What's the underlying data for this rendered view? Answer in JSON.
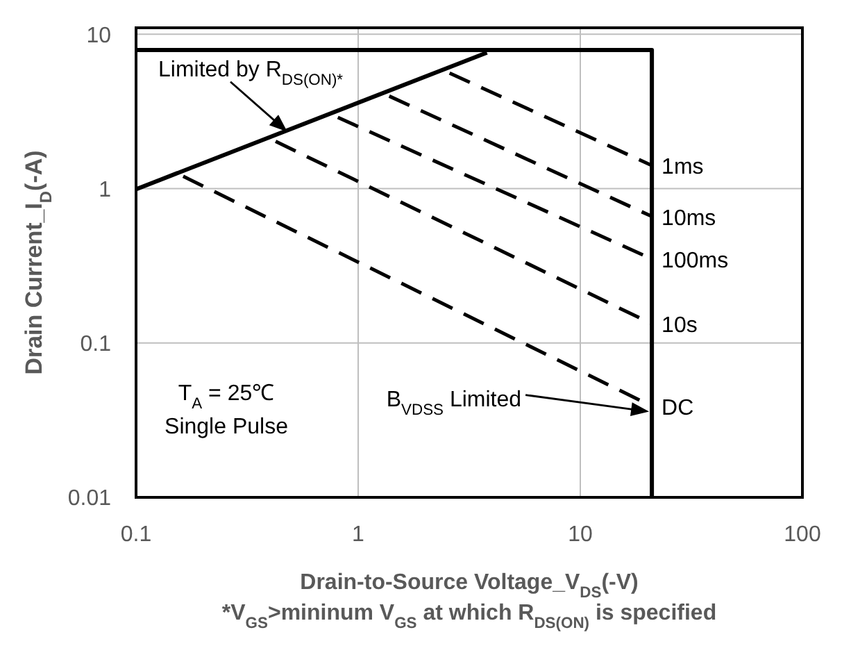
{
  "chart_data": {
    "type": "line",
    "xlabel": "Drain-to-Source  Voltage_V$_{DS}$(-V)",
    "ylabel": "Drain Current_I$_{D}$(-A)",
    "log": "xy",
    "grid": true,
    "marker": "none",
    "xlim": [
      0.1,
      100
    ],
    "xticks": [
      0.1,
      1,
      10,
      100
    ],
    "ylim": [
      0.01,
      11
    ],
    "yticks": [
      0.01,
      0.1,
      1,
      10
    ],
    "series": [
      {
        "color": "#000000",
        "line_style": "solid",
        "x": [
          0.1,
          3.8
        ],
        "values": [
          0.99,
          7.6
        ]
      },
      {
        "color": "#000000",
        "line_style": "solid",
        "x": [
          0.1,
          21,
          21
        ],
        "values": [
          7.9,
          7.9,
          0.01
        ]
      },
      {
        "name": "1ms",
        "color": "#000000",
        "line_style": "dashed",
        "x": [
          2.58,
          21
        ],
        "values": [
          5.6,
          1.41
        ]
      },
      {
        "name": "10ms",
        "color": "#000000",
        "line_style": "dashed",
        "x": [
          1.38,
          21
        ],
        "values": [
          3.97,
          0.66
        ]
      },
      {
        "name": "100ms",
        "color": "#000000",
        "line_style": "dashed",
        "x": [
          0.81,
          21
        ],
        "values": [
          2.89,
          0.35
        ]
      },
      {
        "name": "10s",
        "color": "#000000",
        "line_style": "dashed",
        "x": [
          0.425,
          21
        ],
        "values": [
          2.02,
          0.133
        ]
      },
      {
        "name": "DC",
        "color": "#000000",
        "line_style": "dashed",
        "x": [
          0.163,
          21
        ],
        "values": [
          1.2,
          0.039
        ]
      }
    ],
    "annotations": [
      {
        "text": "Limited by R$_{DS(ON)*}$",
        "x": 0.48,
        "y": 2.33
      },
      "B$_{VDSS}$ Limited",
      "T$_{A}$ = 25℃",
      "Single Pulse",
      "*V$_{GS}$>mininum V$_{GS}$ at which R$_{DS(ON)}$ is specified"
    ]
  }
}
